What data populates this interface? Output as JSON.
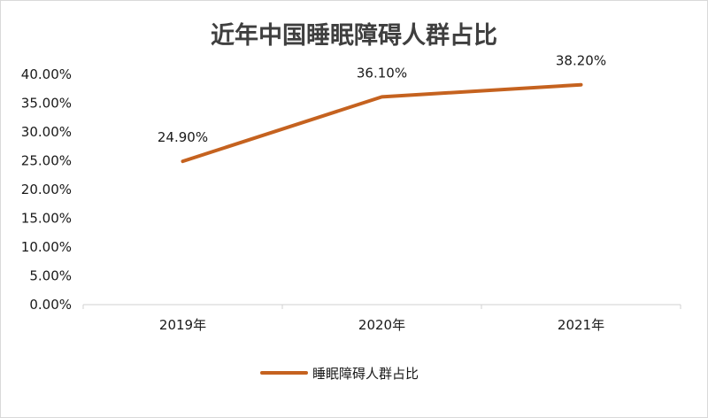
{
  "chart_data": {
    "type": "line",
    "title": "近年中国睡眠障碍人群占比",
    "categories": [
      "2019年",
      "2020年",
      "2021年"
    ],
    "series": [
      {
        "name": "睡眠障碍人群占比",
        "values": [
          24.9,
          36.1,
          38.2
        ],
        "labels": [
          "24.90%",
          "36.10%",
          "38.20%"
        ]
      }
    ],
    "ylim": [
      0,
      40
    ],
    "yticks": [
      0,
      5,
      10,
      15,
      20,
      25,
      30,
      35,
      40
    ],
    "ytick_labels": [
      "0.00%",
      "5.00%",
      "10.00%",
      "15.00%",
      "20.00%",
      "25.00%",
      "30.00%",
      "35.00%",
      "40.00%"
    ],
    "grid": false,
    "legend": "bottom",
    "colors": {
      "line": "#c5621f",
      "axis": "#d0d0d0",
      "text": "#1a1a1a",
      "title": "#3f3f3f"
    }
  }
}
